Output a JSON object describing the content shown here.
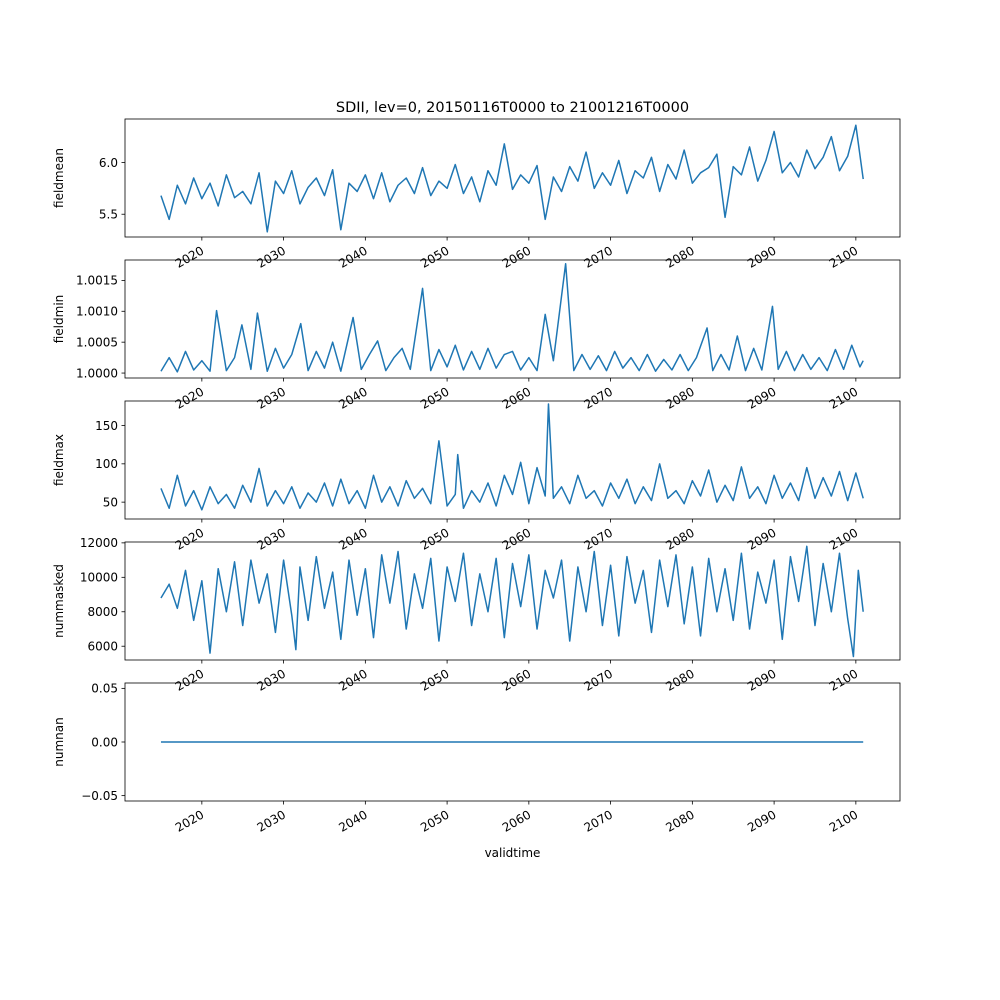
{
  "figure": {
    "title": "SDII, lev=0, 20150116T0000 to 21001216T0000",
    "xlabel": "validtime",
    "line_color": "#1f77b4"
  },
  "chart_data": [
    {
      "type": "line",
      "ylabel": "fieldmean",
      "xlim": [
        2010.6,
        2105.4
      ],
      "ylim": [
        5.28,
        6.42
      ],
      "yticks": [
        5.5,
        6.0
      ],
      "ytick_labels": [
        "5.5",
        "6.0"
      ],
      "xticks": [
        2020,
        2030,
        2040,
        2050,
        2060,
        2070,
        2080,
        2090,
        2100
      ],
      "xtick_labels": [
        "2020",
        "2030",
        "2040",
        "2050",
        "2060",
        "2070",
        "2080",
        "2090",
        "2100"
      ],
      "series": [
        {
          "x": [
            2015.0,
            2016.0,
            2017.0,
            2018.0,
            2019.0,
            2020.0,
            2021.0,
            2022.0,
            2023.0,
            2024.0,
            2025.0,
            2026.0,
            2027.0,
            2028.0,
            2029.0,
            2030.0,
            2031.0,
            2032.0,
            2033.0,
            2034.0,
            2035.0,
            2036.0,
            2037.0,
            2038.0,
            2039.0,
            2040.0,
            2041.0,
            2042.0,
            2043.0,
            2044.0,
            2045.0,
            2046.0,
            2047.0,
            2048.0,
            2049.0,
            2050.0,
            2051.0,
            2052.0,
            2053.0,
            2054.0,
            2055.0,
            2056.0,
            2057.0,
            2058.0,
            2059.0,
            2060.0,
            2061.0,
            2062.0,
            2063.0,
            2064.0,
            2065.0,
            2066.0,
            2067.0,
            2068.0,
            2069.0,
            2070.0,
            2071.0,
            2072.0,
            2073.0,
            2074.0,
            2075.0,
            2076.0,
            2077.0,
            2078.0,
            2079.0,
            2080.0,
            2081.0,
            2082.0,
            2083.0,
            2084.0,
            2085.0,
            2086.0,
            2087.0,
            2088.0,
            2089.0,
            2090.0,
            2091.0,
            2092.0,
            2093.0,
            2094.0,
            2095.0,
            2096.0,
            2097.0,
            2098.0,
            2099.0,
            2100.0,
            2100.9
          ],
          "y": [
            5.68,
            5.45,
            5.78,
            5.6,
            5.85,
            5.65,
            5.8,
            5.58,
            5.88,
            5.66,
            5.72,
            5.6,
            5.9,
            5.33,
            5.82,
            5.7,
            5.92,
            5.6,
            5.76,
            5.85,
            5.68,
            5.93,
            5.35,
            5.8,
            5.72,
            5.88,
            5.65,
            5.9,
            5.62,
            5.78,
            5.85,
            5.7,
            5.95,
            5.68,
            5.82,
            5.75,
            5.98,
            5.7,
            5.86,
            5.62,
            5.92,
            5.78,
            6.18,
            5.74,
            5.88,
            5.8,
            5.97,
            5.45,
            5.86,
            5.72,
            5.96,
            5.82,
            6.1,
            5.75,
            5.9,
            5.78,
            6.02,
            5.7,
            5.92,
            5.85,
            6.05,
            5.72,
            5.98,
            5.84,
            6.12,
            5.8,
            5.9,
            5.95,
            6.08,
            5.47,
            5.96,
            5.88,
            6.15,
            5.82,
            6.02,
            6.3,
            5.9,
            6.0,
            5.86,
            6.12,
            5.94,
            6.05,
            6.25,
            5.92,
            6.06,
            6.36,
            5.84
          ]
        }
      ]
    },
    {
      "type": "line",
      "ylabel": "fieldmin",
      "xlim": [
        2010.6,
        2105.4
      ],
      "ylim": [
        0.99992,
        1.00183
      ],
      "yticks": [
        1.0,
        1.0005,
        1.001,
        1.0015
      ],
      "ytick_labels": [
        "1.0000",
        "1.0005",
        "1.0010",
        "1.0015"
      ],
      "xticks": [
        2020,
        2030,
        2040,
        2050,
        2060,
        2070,
        2080,
        2090,
        2100
      ],
      "xtick_labels": [
        "2020",
        "2030",
        "2040",
        "2050",
        "2060",
        "2070",
        "2080",
        "2090",
        "2100"
      ],
      "series": [
        {
          "x": [
            2015.0,
            2016.0,
            2017.0,
            2018.0,
            2019.0,
            2020.0,
            2021.0,
            2021.8,
            2023.0,
            2024.0,
            2024.9,
            2026.0,
            2026.8,
            2028.0,
            2029.0,
            2030.0,
            2031.0,
            2032.1,
            2033.0,
            2034.0,
            2035.0,
            2036.0,
            2037.0,
            2038.5,
            2039.5,
            2040.5,
            2041.5,
            2042.5,
            2043.5,
            2044.5,
            2045.5,
            2047.0,
            2048.0,
            2049.0,
            2050.0,
            2051.0,
            2052.0,
            2053.0,
            2054.0,
            2055.0,
            2056.0,
            2057.0,
            2058.0,
            2059.0,
            2060.0,
            2061.0,
            2062.0,
            2063.0,
            2064.5,
            2065.5,
            2066.5,
            2067.5,
            2068.5,
            2069.5,
            2070.5,
            2071.5,
            2072.5,
            2073.5,
            2074.5,
            2075.5,
            2076.5,
            2077.5,
            2078.5,
            2079.5,
            2080.5,
            2081.8,
            2082.5,
            2083.5,
            2084.5,
            2085.5,
            2086.5,
            2087.5,
            2088.5,
            2089.8,
            2090.5,
            2091.5,
            2092.5,
            2093.5,
            2094.5,
            2095.5,
            2096.5,
            2097.5,
            2098.5,
            2099.5,
            2100.5,
            2100.9
          ],
          "y": [
            1.00003,
            1.00025,
            1.00002,
            1.00035,
            1.00005,
            1.0002,
            1.00003,
            1.00101,
            1.00004,
            1.00025,
            1.00078,
            1.00006,
            1.00097,
            1.00003,
            1.0004,
            1.00008,
            1.0003,
            1.0008,
            1.00004,
            1.00035,
            1.00008,
            1.0005,
            1.00003,
            1.0009,
            1.00006,
            1.0003,
            1.00052,
            1.00004,
            1.00025,
            1.0004,
            1.00006,
            1.00137,
            1.00004,
            1.00038,
            1.0001,
            1.00045,
            1.00005,
            1.00035,
            1.00006,
            1.0004,
            1.00008,
            1.0003,
            1.00035,
            1.00005,
            1.00025,
            1.00004,
            1.00095,
            1.0002,
            1.00177,
            1.00004,
            1.0003,
            1.00006,
            1.00028,
            1.00004,
            1.00035,
            1.00008,
            1.00025,
            1.00004,
            1.0003,
            1.00003,
            1.00022,
            1.00005,
            1.0003,
            1.00004,
            1.00025,
            1.00073,
            1.00004,
            1.0003,
            1.00005,
            1.0006,
            1.00004,
            1.0004,
            1.00005,
            1.00108,
            1.00006,
            1.00035,
            1.00004,
            1.0003,
            1.00006,
            1.00025,
            1.00004,
            1.00038,
            1.00006,
            1.00045,
            1.0001,
            1.0002
          ]
        }
      ]
    },
    {
      "type": "line",
      "ylabel": "fieldmax",
      "xlim": [
        2010.6,
        2105.4
      ],
      "ylim": [
        28,
        182
      ],
      "yticks": [
        50,
        100,
        150
      ],
      "ytick_labels": [
        "50",
        "100",
        "150"
      ],
      "xticks": [
        2020,
        2030,
        2040,
        2050,
        2060,
        2070,
        2080,
        2090,
        2100
      ],
      "xtick_labels": [
        "2020",
        "2030",
        "2040",
        "2050",
        "2060",
        "2070",
        "2080",
        "2090",
        "2100"
      ],
      "series": [
        {
          "x": [
            2015.0,
            2016.0,
            2017.0,
            2018.0,
            2019.0,
            2020.0,
            2021.0,
            2022.0,
            2023.0,
            2024.0,
            2025.0,
            2026.0,
            2027.0,
            2028.0,
            2029.0,
            2030.0,
            2031.0,
            2032.0,
            2033.0,
            2034.0,
            2035.0,
            2036.0,
            2037.0,
            2038.0,
            2039.0,
            2040.0,
            2041.0,
            2042.0,
            2043.0,
            2044.0,
            2045.0,
            2046.0,
            2047.0,
            2048.0,
            2049.0,
            2050.0,
            2051.0,
            2051.3,
            2052.0,
            2053.0,
            2054.0,
            2055.0,
            2056.0,
            2057.0,
            2058.0,
            2059.0,
            2060.0,
            2061.0,
            2062.0,
            2062.4,
            2063.0,
            2064.0,
            2065.0,
            2066.0,
            2067.0,
            2068.0,
            2069.0,
            2070.0,
            2071.0,
            2072.0,
            2073.0,
            2074.0,
            2075.0,
            2076.0,
            2077.0,
            2078.0,
            2079.0,
            2080.0,
            2081.0,
            2082.0,
            2083.0,
            2084.0,
            2085.0,
            2086.0,
            2087.0,
            2088.0,
            2089.0,
            2090.0,
            2091.0,
            2092.0,
            2093.0,
            2094.0,
            2095.0,
            2096.0,
            2097.0,
            2098.0,
            2099.0,
            2100.0,
            2100.9
          ],
          "y": [
            68,
            42,
            85,
            45,
            65,
            40,
            70,
            48,
            60,
            42,
            72,
            50,
            94,
            45,
            65,
            48,
            70,
            42,
            62,
            50,
            75,
            45,
            80,
            48,
            65,
            42,
            85,
            50,
            70,
            45,
            78,
            55,
            68,
            48,
            130,
            45,
            60,
            112,
            42,
            65,
            50,
            75,
            45,
            85,
            60,
            102,
            48,
            95,
            58,
            178,
            55,
            70,
            48,
            85,
            55,
            65,
            45,
            75,
            55,
            80,
            48,
            70,
            52,
            100,
            55,
            65,
            48,
            78,
            58,
            92,
            50,
            72,
            52,
            96,
            55,
            70,
            48,
            85,
            55,
            75,
            52,
            95,
            55,
            82,
            58,
            90,
            52,
            88,
            55
          ]
        }
      ]
    },
    {
      "type": "line",
      "ylabel": "nummasked",
      "xlim": [
        2010.6,
        2105.4
      ],
      "ylim": [
        5200,
        12050
      ],
      "yticks": [
        6000,
        8000,
        10000,
        12000
      ],
      "ytick_labels": [
        "6000",
        "8000",
        "10000",
        "12000"
      ],
      "xticks": [
        2020,
        2030,
        2040,
        2050,
        2060,
        2070,
        2080,
        2090,
        2100
      ],
      "xtick_labels": [
        "2020",
        "2030",
        "2040",
        "2050",
        "2060",
        "2070",
        "2080",
        "2090",
        "2100"
      ],
      "series": [
        {
          "x": [
            2015.0,
            2016.0,
            2017.0,
            2018.0,
            2019.0,
            2020.0,
            2021.0,
            2022.0,
            2023.0,
            2024.0,
            2025.0,
            2026.0,
            2027.0,
            2028.0,
            2029.0,
            2030.0,
            2031.0,
            2031.5,
            2032.0,
            2033.0,
            2034.0,
            2035.0,
            2036.0,
            2037.0,
            2038.0,
            2039.0,
            2040.0,
            2041.0,
            2042.0,
            2043.0,
            2044.0,
            2045.0,
            2046.0,
            2047.0,
            2048.0,
            2049.0,
            2050.0,
            2051.0,
            2052.0,
            2053.0,
            2054.0,
            2055.0,
            2056.0,
            2057.0,
            2058.0,
            2059.0,
            2060.0,
            2061.0,
            2062.0,
            2063.0,
            2064.0,
            2065.0,
            2066.0,
            2067.0,
            2068.0,
            2069.0,
            2070.0,
            2071.0,
            2072.0,
            2073.0,
            2074.0,
            2075.0,
            2076.0,
            2077.0,
            2078.0,
            2079.0,
            2080.0,
            2081.0,
            2082.0,
            2083.0,
            2084.0,
            2085.0,
            2086.0,
            2087.0,
            2088.0,
            2089.0,
            2090.0,
            2091.0,
            2092.0,
            2093.0,
            2094.0,
            2095.0,
            2096.0,
            2097.0,
            2098.0,
            2099.0,
            2099.7,
            2100.3,
            2100.9
          ],
          "y": [
            8800,
            9600,
            8200,
            10400,
            7500,
            9800,
            5600,
            10500,
            8000,
            10900,
            7200,
            11000,
            8500,
            10200,
            6800,
            11000,
            7800,
            5800,
            10600,
            7500,
            11200,
            8200,
            10300,
            6400,
            11000,
            7800,
            10500,
            6500,
            11300,
            8500,
            11500,
            7000,
            10200,
            8200,
            11100,
            6300,
            10600,
            8600,
            11400,
            7200,
            10200,
            8000,
            11100,
            6500,
            10800,
            8300,
            11300,
            7000,
            10400,
            8800,
            11000,
            6300,
            10600,
            8000,
            11500,
            7200,
            10700,
            6600,
            11200,
            8500,
            10400,
            6800,
            11000,
            8300,
            11300,
            7300,
            10600,
            6600,
            11100,
            8000,
            10500,
            7500,
            11400,
            7000,
            10300,
            8500,
            11000,
            6400,
            11200,
            8600,
            11800,
            7200,
            10800,
            8000,
            11400,
            7600,
            5400,
            10400,
            8000
          ]
        }
      ]
    },
    {
      "type": "line",
      "ylabel": "numnan",
      "xlim": [
        2010.6,
        2105.4
      ],
      "ylim": [
        -0.055,
        0.055
      ],
      "yticks": [
        -0.05,
        0.0,
        0.05
      ],
      "ytick_labels": [
        "−0.05",
        "0.00",
        "0.05"
      ],
      "xticks": [
        2020,
        2030,
        2040,
        2050,
        2060,
        2070,
        2080,
        2090,
        2100
      ],
      "xtick_labels": [
        "2020",
        "2030",
        "2040",
        "2050",
        "2060",
        "2070",
        "2080",
        "2090",
        "2100"
      ],
      "series": [
        {
          "x": [
            2015.0,
            2100.9
          ],
          "y": [
            0,
            0
          ]
        }
      ]
    }
  ]
}
